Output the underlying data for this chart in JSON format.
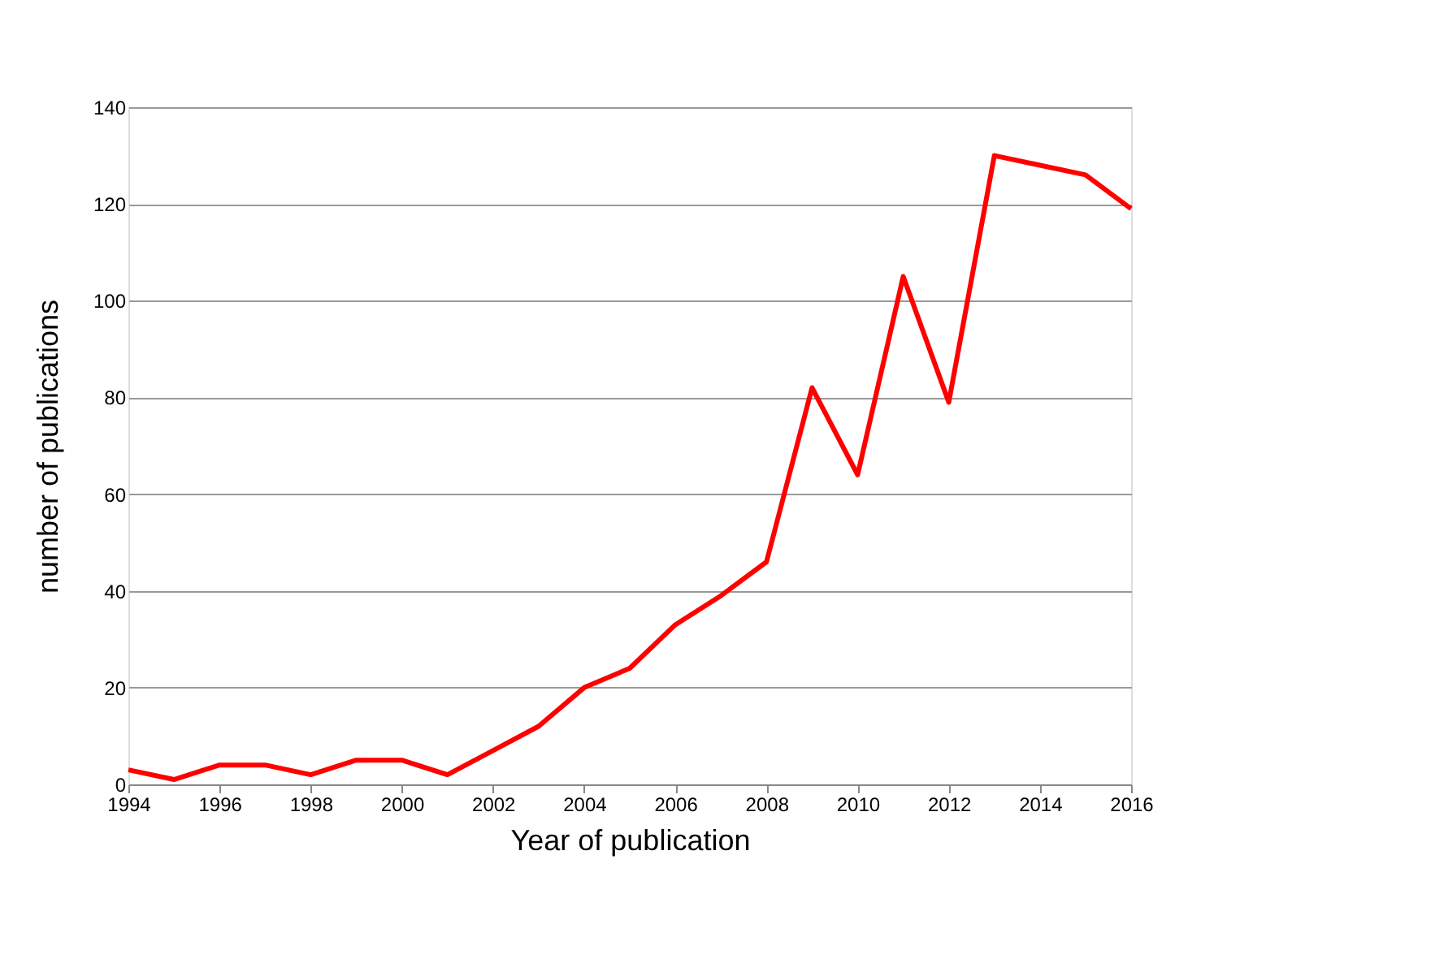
{
  "chart_data": {
    "type": "line",
    "xlabel": "Year of publication",
    "ylabel": "number of publications",
    "x": [
      1994,
      1995,
      1996,
      1997,
      1998,
      1999,
      2000,
      2001,
      2002,
      2003,
      2004,
      2005,
      2006,
      2007,
      2008,
      2009,
      2010,
      2011,
      2012,
      2013,
      2014,
      2015,
      2016
    ],
    "series": [
      {
        "color": "#ff0000",
        "values": [
          3,
          1,
          4,
          4,
          2,
          5,
          5,
          2,
          7,
          12,
          20,
          24,
          33,
          39,
          46,
          82,
          64,
          105,
          79,
          130,
          128,
          126,
          119
        ]
      }
    ],
    "xlim": [
      1994,
      2016
    ],
    "xticks": [
      1994,
      1996,
      1998,
      2000,
      2002,
      2004,
      2006,
      2008,
      2010,
      2012,
      2014,
      2016
    ],
    "ylim": [
      0,
      140
    ],
    "yticks": [
      0,
      20,
      40,
      60,
      80,
      100,
      120,
      140
    ],
    "grid": "y",
    "marker": "none",
    "line_style": "solid"
  }
}
